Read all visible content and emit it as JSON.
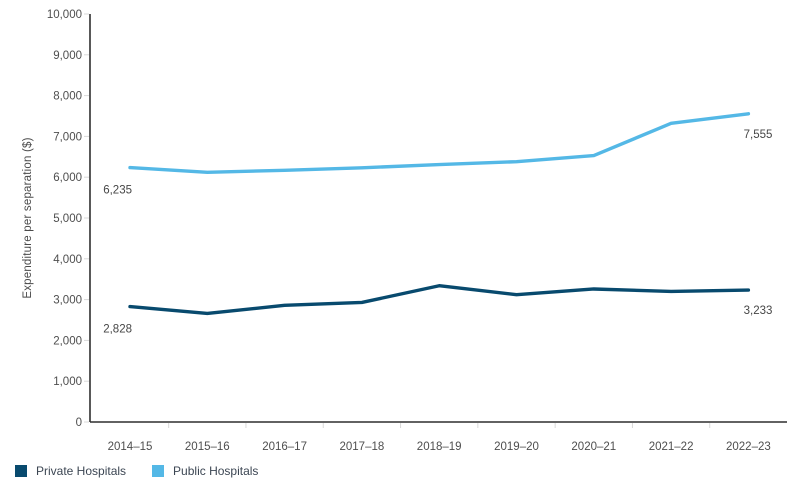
{
  "chart_data": {
    "type": "line",
    "title": "",
    "xlabel": "",
    "ylabel": "Expenditure per separation ($)",
    "ylim": [
      0,
      10000
    ],
    "ytick_step": 1000,
    "ytick_labels": [
      "0",
      "1,000",
      "2,000",
      "3,000",
      "4,000",
      "5,000",
      "6,000",
      "7,000",
      "8,000",
      "9,000",
      "10,000"
    ],
    "categories": [
      "2014–15",
      "2015–16",
      "2016–17",
      "2017–18",
      "2018–19",
      "2019–20",
      "2020–21",
      "2021–22",
      "2022–23"
    ],
    "series": [
      {
        "name": "Private Hospitals",
        "color": "#084a6e",
        "values": [
          2828,
          2660,
          2860,
          2930,
          3340,
          3120,
          3260,
          3200,
          3233
        ],
        "first_point_label": "2,828",
        "last_point_label": "3,233"
      },
      {
        "name": "Public Hospitals",
        "color": "#54b8e6",
        "values": [
          6235,
          6120,
          6170,
          6230,
          6310,
          6380,
          6530,
          7320,
          7555
        ],
        "first_point_label": "6,235",
        "last_point_label": "7,555"
      }
    ],
    "grid": false,
    "legend_position": "bottom-left"
  },
  "legend": {
    "items": [
      {
        "label": "Private Hospitals",
        "color": "#084a6e"
      },
      {
        "label": "Public Hospitals",
        "color": "#54b8e6"
      }
    ]
  },
  "colors": {
    "axis_line": "#2f2f2f",
    "tick_mark": "#d8d8d8",
    "tick_text": "#4e4e4e",
    "data_label_text": "#464646"
  }
}
